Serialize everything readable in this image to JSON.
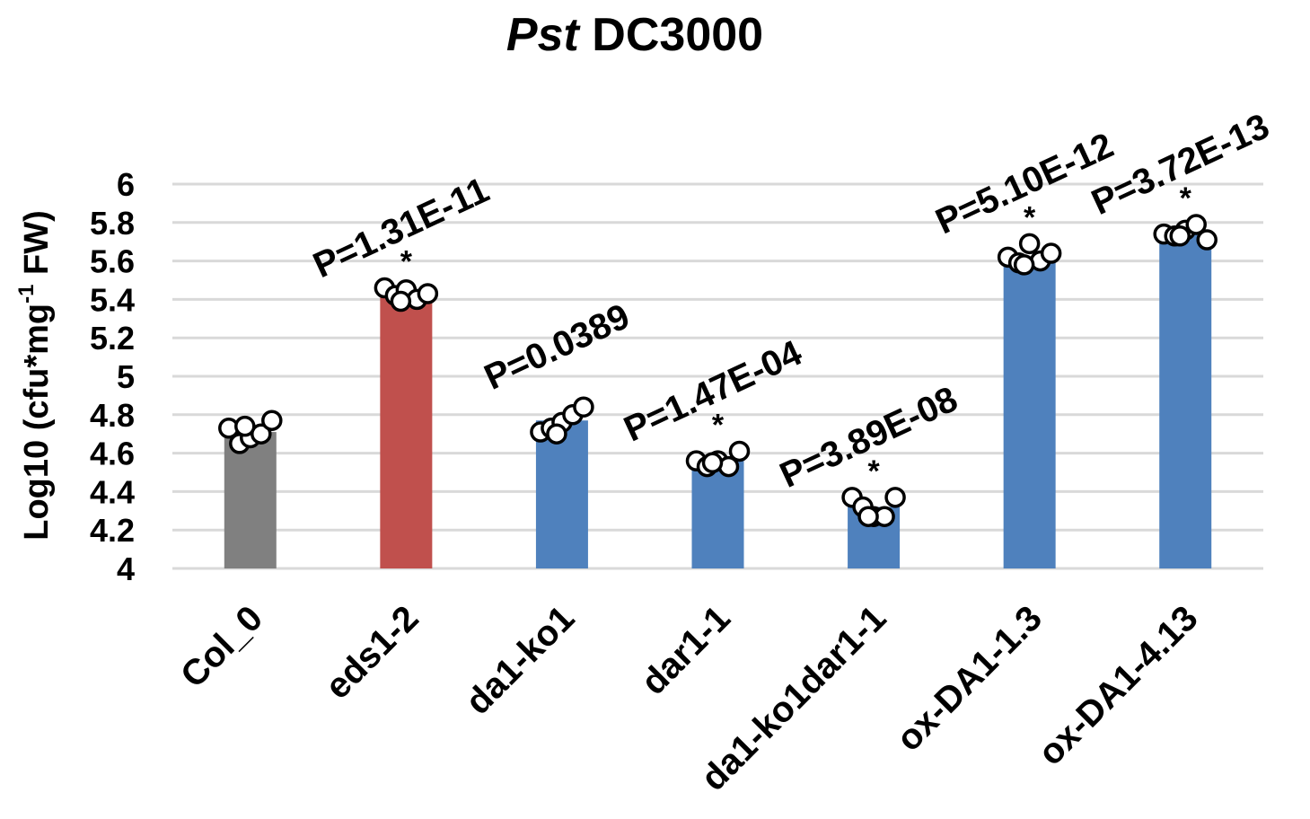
{
  "chart_data": {
    "type": "bar",
    "title_italic": "Pst",
    "title_rest": " DC3000",
    "ylabel_main": "Log10 (cfu*mg",
    "ylabel_sup": "-1",
    "ylabel_end": " FW)",
    "xlabel": "",
    "ylim": [
      4,
      6
    ],
    "yticks": [
      "4",
      "4.2",
      "4.4",
      "4.6",
      "4.8",
      "5",
      "5.2",
      "5.4",
      "5.6",
      "5.8",
      "6"
    ],
    "grid": true,
    "categories": [
      "Col_0",
      "eds1-2",
      "da1-ko1",
      "dar1-1",
      "da1-ko1dar1-1",
      "ox-DA1-1.3",
      "ox-DA1-4.13"
    ],
    "values": [
      4.71,
      5.43,
      4.77,
      4.56,
      4.32,
      5.62,
      5.74
    ],
    "colors": [
      "#808080",
      "#c0504d",
      "#4f81bd",
      "#4f81bd",
      "#4f81bd",
      "#4f81bd",
      "#4f81bd"
    ],
    "points": [
      [
        4.73,
        4.65,
        4.68,
        4.7,
        4.77,
        4.74
      ],
      [
        5.46,
        5.42,
        5.45,
        5.4,
        5.43,
        5.39
      ],
      [
        4.71,
        4.73,
        4.76,
        4.8,
        4.84,
        4.7
      ],
      [
        4.56,
        4.53,
        4.56,
        4.53,
        4.61,
        4.55
      ],
      [
        4.37,
        4.32,
        4.27,
        4.27,
        4.37,
        4.27
      ],
      [
        5.62,
        5.59,
        5.69,
        5.6,
        5.64,
        5.58
      ],
      [
        5.74,
        5.73,
        5.76,
        5.79,
        5.71,
        5.73
      ]
    ],
    "significance": [
      "",
      "*",
      "",
      "*",
      "*",
      "*",
      "*"
    ],
    "annotations": [
      "",
      "P=1.31E-11",
      "P=0.0389",
      "P=1.47E-04",
      "P=3.89E-08",
      "P=5.10E-12",
      "P=3.72E-13"
    ]
  }
}
